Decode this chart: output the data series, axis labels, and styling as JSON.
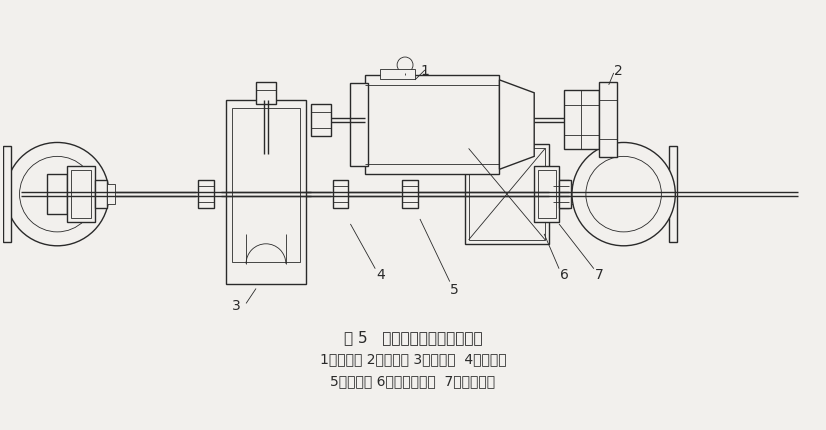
{
  "background_color": "#f2f0ed",
  "line_color": "#2a2a2a",
  "title_line1": "图 5   小车运行机构传动系统图",
  "title_line2": "1、电动机 2、制动器 3、减速器  4、补偿轴",
  "title_line3": "5、联轴器 6、角形轴承笱  7、小车车轮",
  "title_fontsize": 11,
  "label_fontsize": 10,
  "fig_width": 8.26,
  "fig_height": 4.31,
  "dpi": 100
}
